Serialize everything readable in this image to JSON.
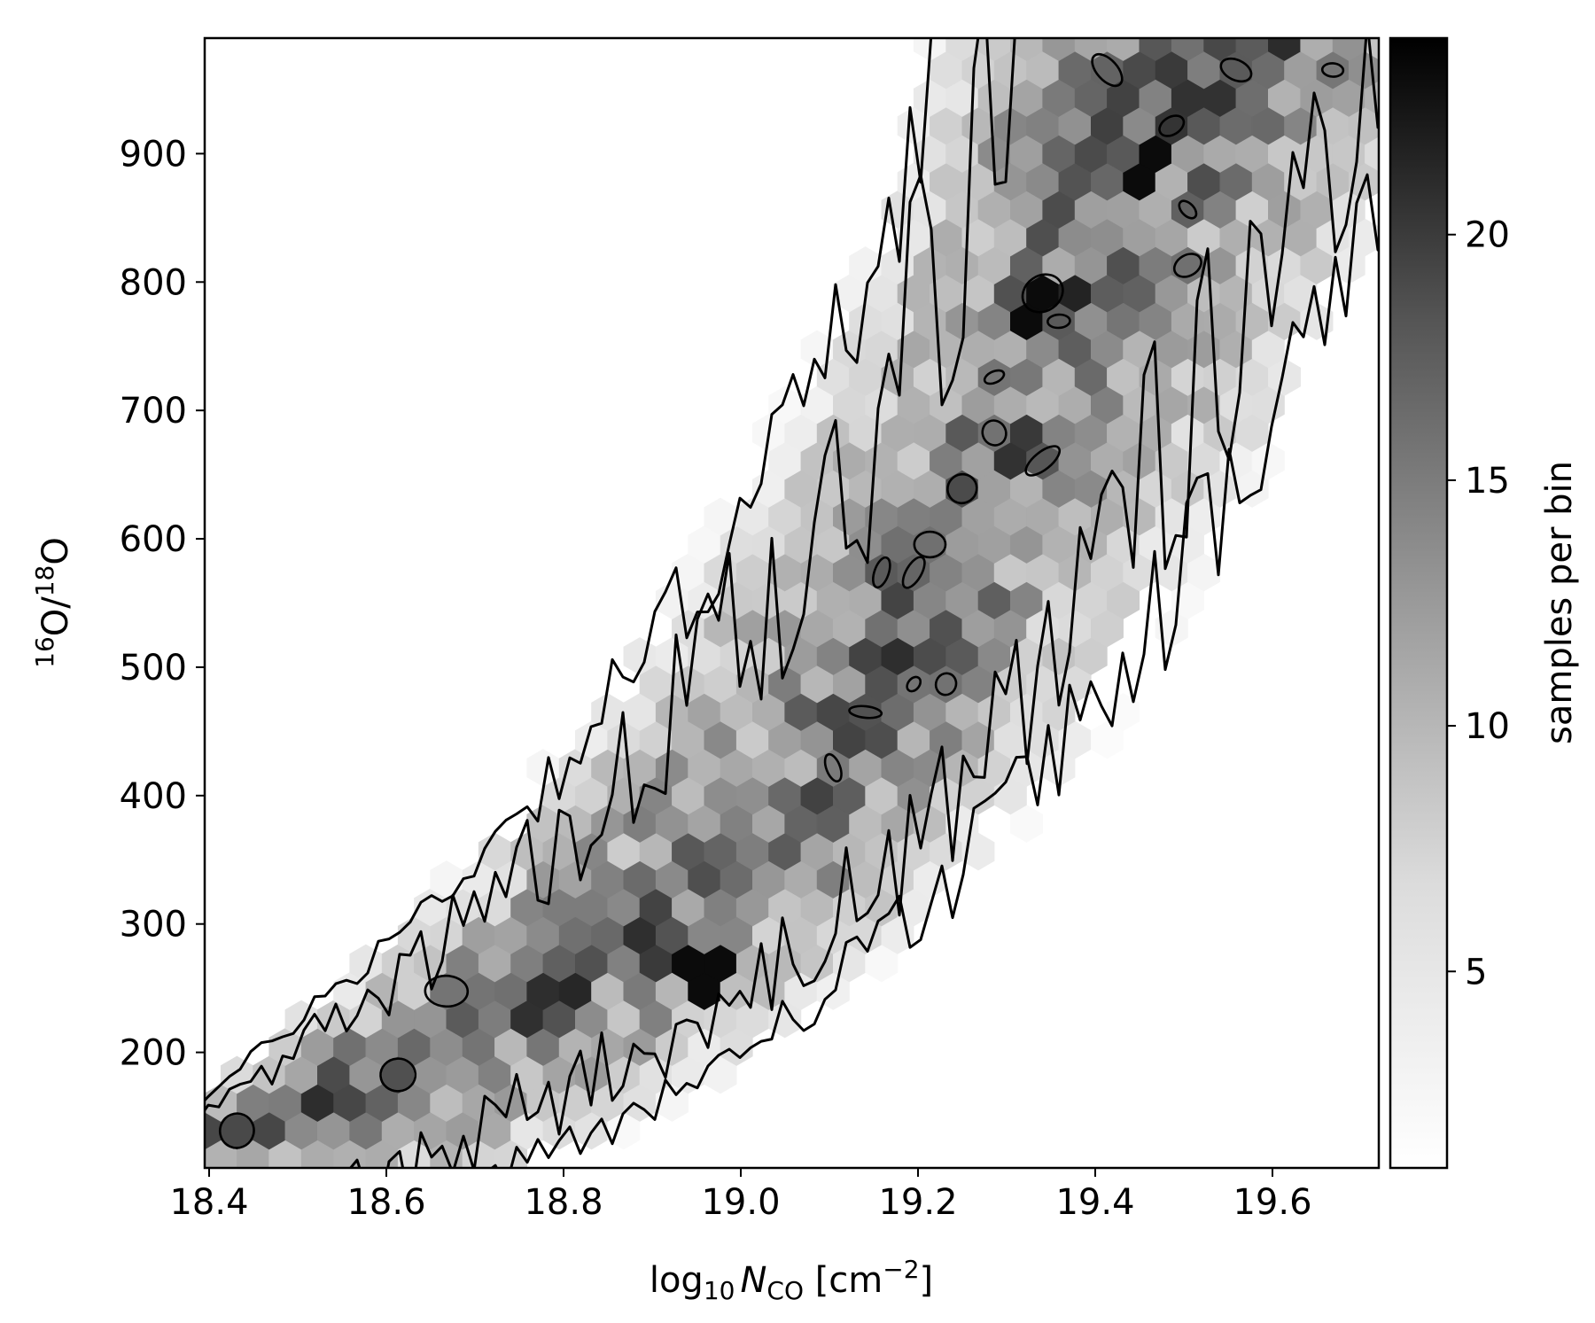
{
  "chart_data": {
    "type": "heatmap",
    "subtype": "hexbin-density-with-contours",
    "title": "",
    "xlabel": {
      "prefix": "log",
      "sub1": "10",
      "var": "N",
      "sub2": "CO",
      "unit_open": " [cm",
      "sup": "−2",
      "unit_close": "]"
    },
    "ylabel": {
      "sup1": "16",
      "mid": "O/",
      "sup2": "18",
      "end": "O"
    },
    "xlim": [
      18.395,
      19.72
    ],
    "ylim": [
      110,
      990
    ],
    "x_ticks": [
      18.4,
      18.6,
      18.8,
      19.0,
      19.2,
      19.4,
      19.6
    ],
    "x_tick_labels": [
      "18.4",
      "18.6",
      "18.8",
      "19.0",
      "19.2",
      "19.4",
      "19.6"
    ],
    "y_ticks": [
      200,
      300,
      400,
      500,
      600,
      700,
      800,
      900
    ],
    "y_tick_labels": [
      "200",
      "300",
      "400",
      "500",
      "600",
      "700",
      "800",
      "900"
    ],
    "colorbar": {
      "label": "samples per bin",
      "range": [
        1,
        24
      ],
      "ticks": [
        5,
        10,
        15,
        20
      ],
      "tick_labels": [
        "5",
        "10",
        "15",
        "20"
      ],
      "colormap": "Greys",
      "color_low": "#ffffff",
      "color_high": "#000000"
    },
    "distribution": {
      "ridge": [
        {
          "x": 18.45,
          "y": 150
        },
        {
          "x": 18.7,
          "y": 215
        },
        {
          "x": 18.9,
          "y": 280
        },
        {
          "x": 19.1,
          "y": 400
        },
        {
          "x": 19.25,
          "y": 560
        },
        {
          "x": 19.35,
          "y": 760
        },
        {
          "x": 19.45,
          "y": 900
        },
        {
          "x": 19.55,
          "y": 985
        }
      ],
      "lower_edge": [
        {
          "x": 18.8,
          "y": 110
        },
        {
          "x": 19.0,
          "y": 180
        },
        {
          "x": 19.2,
          "y": 280
        },
        {
          "x": 19.4,
          "y": 420
        },
        {
          "x": 19.55,
          "y": 580
        },
        {
          "x": 19.72,
          "y": 820
        }
      ],
      "upper_edge": [
        {
          "x": 18.4,
          "y": 170
        },
        {
          "x": 18.65,
          "y": 330
        },
        {
          "x": 18.8,
          "y": 450
        },
        {
          "x": 18.95,
          "y": 600
        },
        {
          "x": 19.05,
          "y": 720
        },
        {
          "x": 19.15,
          "y": 860
        },
        {
          "x": 19.2,
          "y": 980
        }
      ],
      "peak_counts": [
        {
          "x": 18.96,
          "y": 260,
          "count": 23
        },
        {
          "x": 19.33,
          "y": 785,
          "count": 23
        },
        {
          "x": 19.46,
          "y": 885,
          "count": 23
        },
        {
          "x": 19.62,
          "y": 985,
          "count": 20
        }
      ]
    },
    "contour_levels": [
      "low",
      "high"
    ]
  }
}
